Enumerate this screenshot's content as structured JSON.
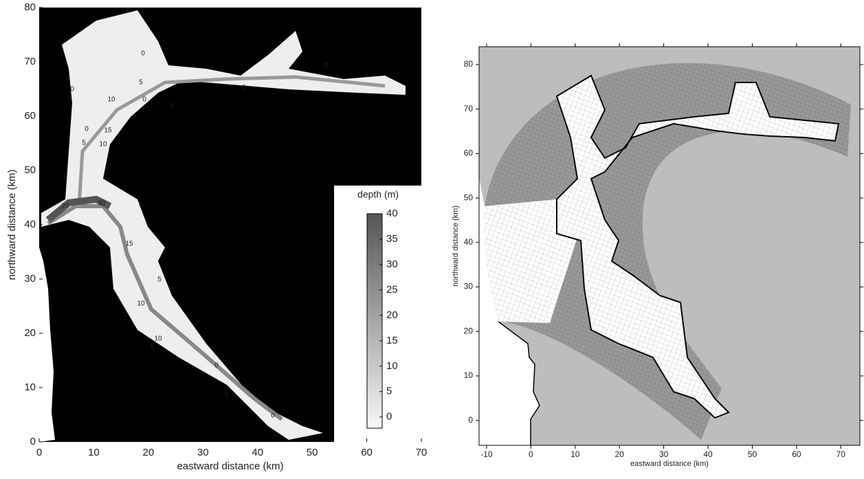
{
  "chart_data": [
    {
      "type": "map",
      "xlabel": "eastward distance (km)",
      "ylabel": "northward distance (km)",
      "xlim": [
        0,
        70
      ],
      "ylim": [
        0,
        80
      ],
      "xticks": [
        0,
        10,
        20,
        30,
        40,
        50,
        60,
        70
      ],
      "yticks": [
        0,
        10,
        20,
        30,
        40,
        50,
        60,
        70,
        80
      ],
      "colorbar": {
        "label": "depth (m)",
        "lim": [
          -2.2,
          40
        ],
        "ticks": [
          0,
          5,
          10,
          15,
          20,
          25,
          30,
          35,
          40
        ]
      },
      "contour_labels": [
        "0",
        "0",
        "0",
        "5",
        "10",
        "5",
        "5",
        "0",
        "15",
        "10",
        "0",
        "5",
        "20",
        "30",
        "5",
        "15",
        "10",
        "5",
        "5",
        "10",
        "0",
        "5",
        "0",
        "0"
      ]
    },
    {
      "type": "mesh",
      "xlabel": "eastward distance (km)",
      "ylabel": "northward distance (km)",
      "xlim": [
        -11.7,
        74.3
      ],
      "ylim": [
        -5.6,
        84
      ],
      "xticks": [
        -10,
        0,
        10,
        20,
        30,
        40,
        50,
        60,
        70
      ],
      "yticks": [
        0,
        10,
        20,
        30,
        40,
        50,
        60,
        70,
        80
      ]
    }
  ]
}
